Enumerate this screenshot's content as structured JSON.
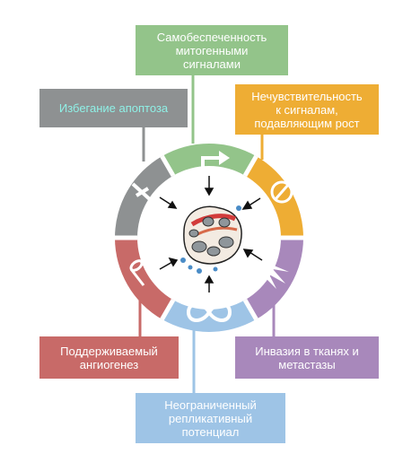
{
  "colors": {
    "green": "#93c48a",
    "gray": "#8e9192",
    "orange": "#eead34",
    "purple": "#a888bb",
    "red": "#c86a68",
    "blue": "#9ec4e6",
    "apoptosis_text": "#8ff0e6"
  },
  "hallmarks": {
    "top": "Самобеспеченность\nмитогенными\nсигналами",
    "top_left": "Избегание апоптоза",
    "top_right": "Нечувствительность\nк сигналам,\nподавляющим рост",
    "bottom_left": "Поддерживаемый\nангиогенез",
    "bottom_right": "Инвазия в тканях и\nметастазы",
    "bottom": "Неограниченный\nрепликативный\nпотенциал"
  },
  "icons": {
    "top": "arrow-right-turn-icon",
    "top_left": "cross-icon",
    "top_right": "no-entry-icon",
    "bottom_left": "vessel-tube-icon",
    "bottom_right": "spikes-icon",
    "bottom": "infinity-icon",
    "center": "tumor-cells-icon"
  }
}
